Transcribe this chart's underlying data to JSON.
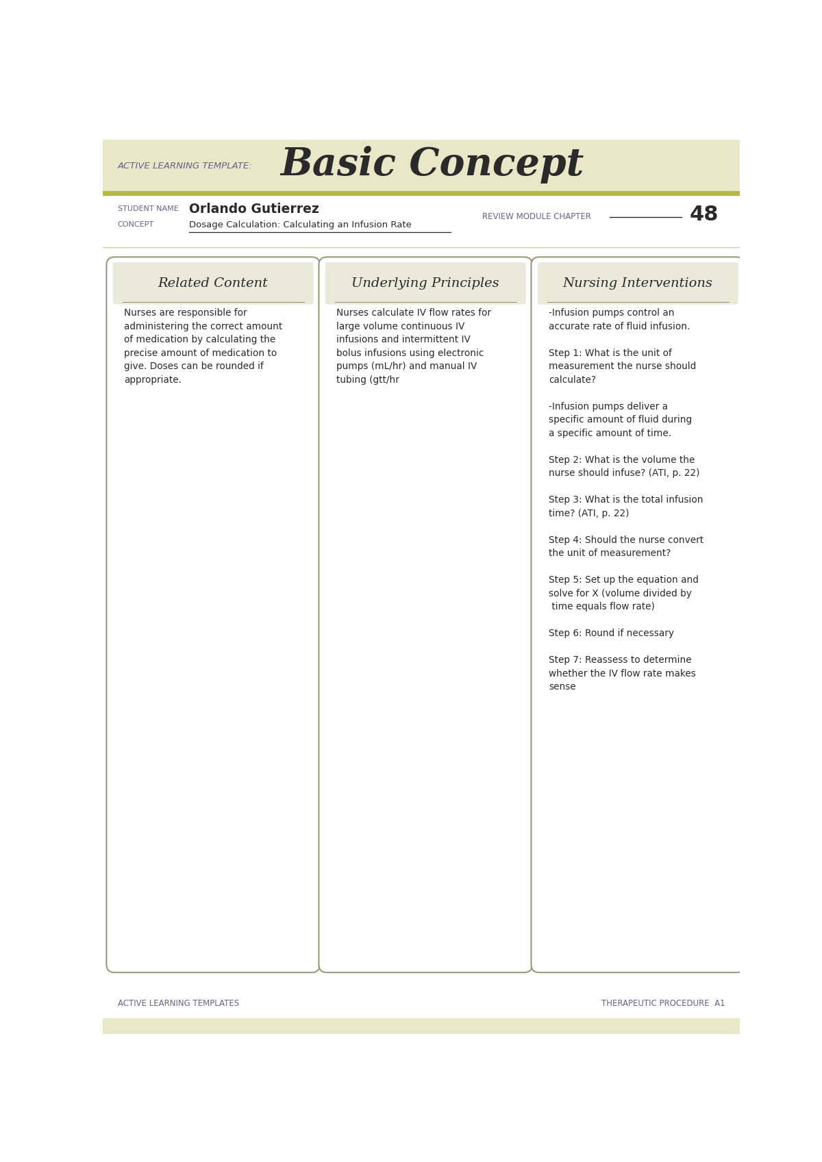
{
  "header_bg": "#e8e8c8",
  "white_bg": "#ffffff",
  "accent_color": "#b5b842",
  "purple_color": "#6a5f8a",
  "dark_text": "#2a2a2a",
  "box_bg": "#eaeada",
  "box_border": "#9a9a78",
  "template_label": "ACTIVE LEARNING TEMPLATE:",
  "template_title": "Basic Concept",
  "student_name_label": "STUDENT NAME",
  "concept_label": "CONCEPT",
  "student_name": "Orlando Gutierrez",
  "concept_text": "Dosage Calculation: Calculating an Infusion Rate",
  "review_label": "REVIEW MODULE CHAPTER",
  "review_number": "48",
  "col1_title": "Related Content",
  "col2_title": "Underlying Principles",
  "col3_title": "Nursing Interventions",
  "col1_content": "Nurses are responsible for\nadministering the correct amount\nof medication by calculating the\nprecise amount of medication to\ngive. Doses can be rounded if\nappropriate.",
  "col2_content": "Nurses calculate IV flow rates for\nlarge volume continuous IV\ninfusions and intermittent IV\nbolus infusions using electronic\npumps (mL/hr) and manual IV\ntubing (gtt/hr",
  "col3_content": "-Infusion pumps control an\naccurate rate of fluid infusion.\n\nStep 1: What is the unit of\nmeasurement the nurse should\ncalculate?\n\n-Infusion pumps deliver a\nspecific amount of fluid during\na specific amount of time.\n\nStep 2: What is the volume the\nnurse should infuse? (ATI, p. 22)\n\nStep 3: What is the total infusion\ntime? (ATI, p. 22)\n\nStep 4: Should the nurse convert\nthe unit of measurement?\n\nStep 5: Set up the equation and\nsolve for X (volume divided by\n time equals flow rate)\n\nStep 6: Round if necessary\n\nStep 7: Reassess to determine\nwhether the IV flow rate makes\nsense",
  "footer_left": "ACTIVE LEARNING TEMPLATES",
  "footer_right": "THERAPEUTIC PROCEDURE  A1"
}
